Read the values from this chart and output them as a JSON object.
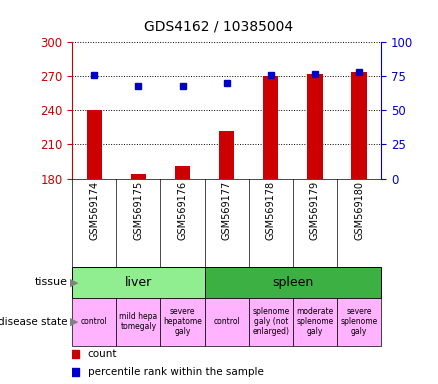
{
  "title": "GDS4162 / 10385004",
  "samples": [
    "GSM569174",
    "GSM569175",
    "GSM569176",
    "GSM569177",
    "GSM569178",
    "GSM569179",
    "GSM569180"
  ],
  "counts": [
    240,
    184,
    191,
    222,
    270,
    272,
    274
  ],
  "percentile_ranks": [
    76,
    68,
    68,
    70,
    76,
    77,
    78
  ],
  "ylim_left": [
    180,
    300
  ],
  "ylim_right": [
    0,
    100
  ],
  "yticks_left": [
    180,
    210,
    240,
    270,
    300
  ],
  "yticks_right": [
    0,
    25,
    50,
    75,
    100
  ],
  "bar_color": "#cc0000",
  "dot_color": "#0000cc",
  "tissue_groups": [
    {
      "label": "liver",
      "start": 0,
      "end": 3,
      "color": "#90ee90"
    },
    {
      "label": "spleen",
      "start": 3,
      "end": 7,
      "color": "#3cb043"
    }
  ],
  "disease_states": [
    {
      "label": "control",
      "start": 0,
      "end": 1,
      "color": "#ffb3ff"
    },
    {
      "label": "mild hepa\ntomegaly",
      "start": 1,
      "end": 2,
      "color": "#ffb3ff"
    },
    {
      "label": "severe\nhepatome\ngaly",
      "start": 2,
      "end": 3,
      "color": "#ffb3ff"
    },
    {
      "label": "control",
      "start": 3,
      "end": 4,
      "color": "#ffb3ff"
    },
    {
      "label": "splenome\ngaly (not\nenlarged)",
      "start": 4,
      "end": 5,
      "color": "#ffb3ff"
    },
    {
      "label": "moderate\nsplenome\ngaly",
      "start": 5,
      "end": 6,
      "color": "#ffb3ff"
    },
    {
      "label": "severe\nsplenome\ngaly",
      "start": 6,
      "end": 7,
      "color": "#ffb3ff"
    }
  ],
  "left_axis_color": "#cc0000",
  "right_axis_color": "#0000cc",
  "sample_label_bg": "#c8c8c8",
  "legend_items": [
    {
      "label": "count",
      "color": "#cc0000"
    },
    {
      "label": "percentile rank within the sample",
      "color": "#0000cc"
    }
  ]
}
